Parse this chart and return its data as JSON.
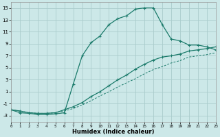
{
  "xlabel": "Humidex (Indice chaleur)",
  "bg_color": "#cce8e8",
  "grid_color": "#aacccc",
  "line_color": "#1a7a6a",
  "xlim": [
    0,
    23
  ],
  "ylim": [
    -4,
    16
  ],
  "yticks": [
    -3,
    -1,
    1,
    3,
    5,
    7,
    9,
    11,
    13,
    15
  ],
  "xticks": [
    0,
    1,
    2,
    3,
    4,
    5,
    6,
    7,
    8,
    9,
    10,
    11,
    12,
    13,
    14,
    15,
    16,
    17,
    18,
    19,
    20,
    21,
    22,
    23
  ],
  "line1_x": [
    0,
    1,
    2,
    3,
    4,
    5,
    6,
    7,
    8,
    9,
    10,
    11,
    12,
    13,
    14,
    15,
    16,
    17,
    18,
    19,
    20,
    21,
    22,
    23
  ],
  "line1_y": [
    -2,
    -2.5,
    -2.6,
    -2.8,
    -2.8,
    -2.7,
    -2.5,
    2.3,
    7.0,
    9.2,
    10.3,
    12.2,
    13.2,
    13.7,
    14.8,
    15.0,
    15.0,
    12.2,
    9.8,
    9.5,
    8.8,
    8.8,
    8.5,
    8.0
  ],
  "line2_x": [
    0,
    1,
    2,
    3,
    4,
    5,
    6,
    7,
    8,
    9,
    10,
    11,
    12,
    13,
    14,
    15,
    16,
    17,
    18,
    19,
    20,
    21,
    22,
    23
  ],
  "line2_y": [
    -2.0,
    -2.2,
    -2.5,
    -2.6,
    -2.6,
    -2.5,
    -2.0,
    -1.5,
    -0.8,
    0.2,
    1.0,
    2.0,
    3.0,
    3.8,
    4.8,
    5.6,
    6.3,
    6.8,
    7.0,
    7.3,
    7.8,
    8.0,
    8.2,
    8.5
  ],
  "line3_x": [
    0,
    1,
    2,
    3,
    4,
    5,
    6,
    7,
    8,
    9,
    10,
    11,
    12,
    13,
    14,
    15,
    16,
    17,
    18,
    19,
    20,
    21,
    22,
    23
  ],
  "line3_y": [
    -2.0,
    -2.2,
    -2.5,
    -2.6,
    -2.6,
    -2.5,
    -2.2,
    -1.8,
    -1.2,
    -0.5,
    0.3,
    1.0,
    1.8,
    2.5,
    3.2,
    4.0,
    4.7,
    5.2,
    5.8,
    6.2,
    6.8,
    7.0,
    7.2,
    7.5
  ]
}
